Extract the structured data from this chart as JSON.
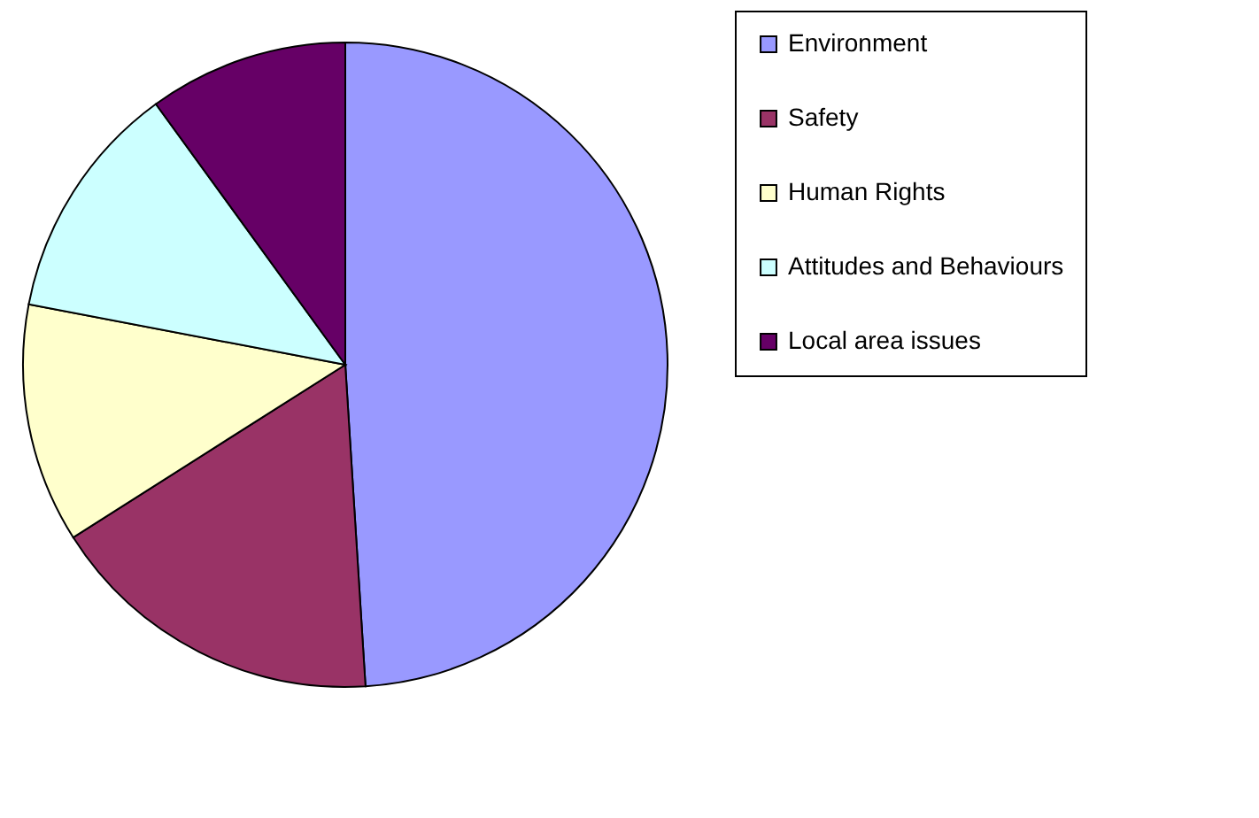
{
  "chart_data": {
    "type": "pie",
    "categories": [
      "Environment",
      "Safety",
      "Human Rights",
      "Attitudes and Behaviours",
      "Local area issues"
    ],
    "values": [
      49,
      17,
      12,
      12,
      10
    ],
    "colors": [
      "#9999ff",
      "#993366",
      "#ffffcc",
      "#ccffff",
      "#660066"
    ],
    "legend": "right"
  }
}
